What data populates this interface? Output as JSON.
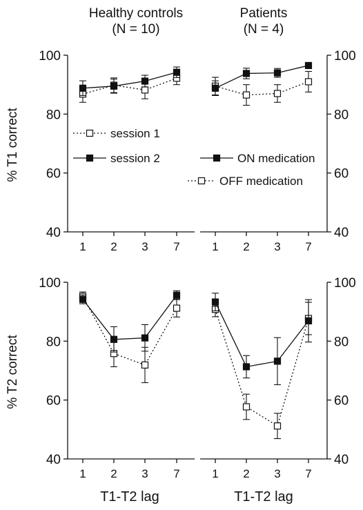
{
  "figure": {
    "group_titles": [
      {
        "name": "Healthy controls",
        "n": "(N = 10)"
      },
      {
        "name": "Patients",
        "n": "(N = 4)"
      }
    ],
    "xlabel": "T1-T2 lag",
    "legend_controls": [
      "session 1",
      "session 2"
    ],
    "legend_patients": [
      "ON medication",
      "OFF medication"
    ]
  },
  "chart_data": [
    {
      "type": "line",
      "row": 1,
      "ylabel": "% T1 correct",
      "ylim": [
        40,
        100
      ],
      "yticks": [
        40,
        60,
        80,
        100
      ],
      "categories": [
        "1",
        "2",
        "3",
        "7"
      ],
      "panels": [
        {
          "group": "Healthy controls",
          "series": [
            {
              "name": "session 1",
              "style": "dotted-open",
              "values": [
                86.8,
                89.8,
                88.2,
                92.2
              ],
              "errors": [
                2.8,
                2.5,
                3.0,
                2.2
              ]
            },
            {
              "name": "session 2",
              "style": "solid-filled",
              "values": [
                88.8,
                89.5,
                91.2,
                94.2
              ],
              "errors": [
                2.5,
                2.4,
                2.0,
                1.8
              ]
            }
          ]
        },
        {
          "group": "Patients",
          "series": [
            {
              "name": "OFF medication",
              "style": "dotted-open",
              "values": [
                89.5,
                86.5,
                87.0,
                91.0
              ],
              "errors": [
                3.0,
                3.5,
                3.0,
                3.5
              ]
            },
            {
              "name": "ON medication",
              "style": "solid-filled",
              "values": [
                88.8,
                93.8,
                94.0,
                96.5
              ],
              "errors": [
                2.5,
                1.8,
                1.5,
                1.0
              ]
            }
          ]
        }
      ]
    },
    {
      "type": "line",
      "row": 2,
      "ylabel": "% T2 correct",
      "ylim": [
        40,
        100
      ],
      "yticks": [
        40,
        60,
        80,
        100
      ],
      "categories": [
        "1",
        "2",
        "3",
        "7"
      ],
      "panels": [
        {
          "group": "Healthy controls",
          "series": [
            {
              "name": "session 1",
              "style": "dotted-open",
              "values": [
                95.2,
                75.8,
                71.9,
                91.2
              ],
              "errors": [
                1.5,
                4.5,
                6.0,
                3.0
              ]
            },
            {
              "name": "session 2",
              "style": "solid-filled",
              "values": [
                94.2,
                80.6,
                81.1,
                95.6
              ],
              "errors": [
                1.5,
                4.3,
                4.5,
                1.5
              ]
            }
          ]
        },
        {
          "group": "Patients",
          "series": [
            {
              "name": "OFF medication",
              "style": "dotted-open",
              "values": [
                90.8,
                57.7,
                51.2,
                87.7
              ],
              "errors": [
                2.5,
                4.3,
                4.3,
                5.5
              ]
            },
            {
              "name": "ON medication",
              "style": "solid-filled",
              "values": [
                93.3,
                71.3,
                73.2,
                86.9
              ],
              "errors": [
                3.0,
                3.8,
                8.0,
                7.2
              ]
            }
          ]
        }
      ]
    }
  ]
}
